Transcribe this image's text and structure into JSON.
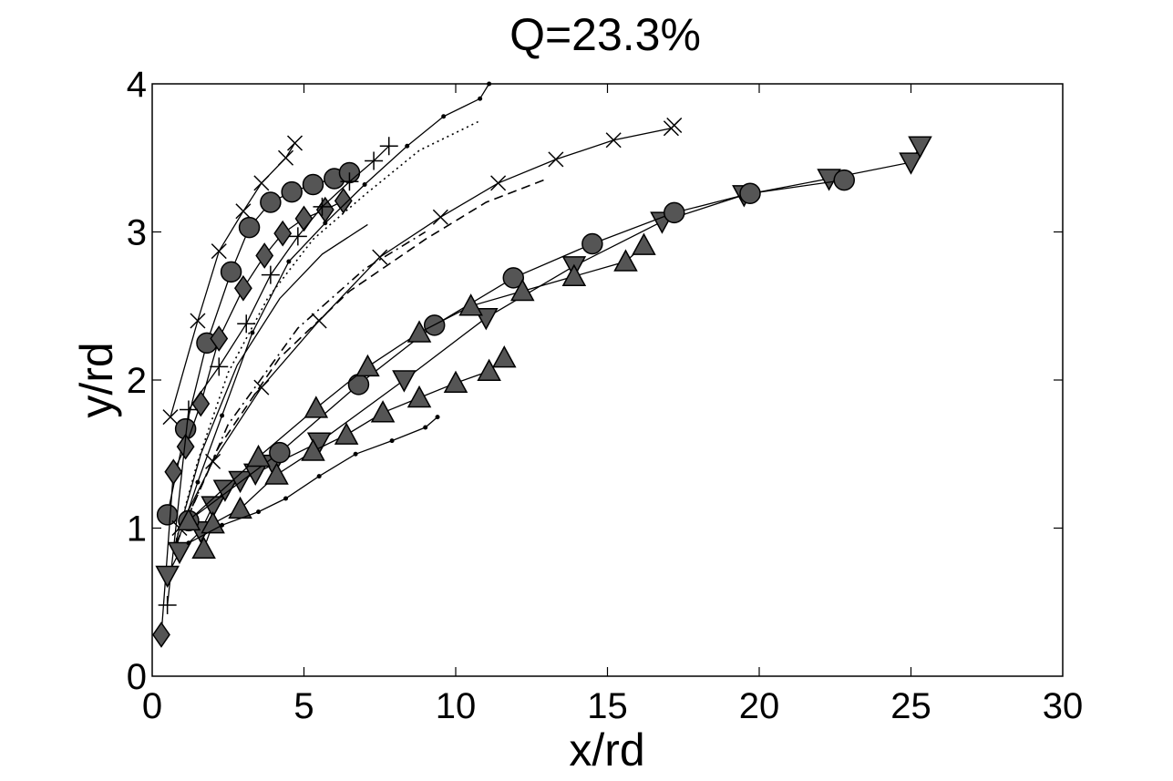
{
  "chart_data": {
    "type": "scatter",
    "title": "Q=23.3%",
    "xlabel": "x/rd",
    "ylabel": "y/rd",
    "xlim": [
      0,
      30
    ],
    "ylim": [
      0,
      4
    ],
    "xticks": [
      "0",
      "5",
      "10",
      "15",
      "20",
      "25",
      "30"
    ],
    "yticks": [
      "0",
      "1",
      "2",
      "3",
      "4"
    ],
    "grid": false,
    "legend": "none",
    "series": [
      {
        "marker": "x",
        "line": "solid",
        "x": [
          0.6,
          1.5,
          2.2,
          3.0,
          3.6,
          4.4,
          4.7
        ],
        "y": [
          1.75,
          2.4,
          2.87,
          3.14,
          3.33,
          3.5,
          3.6
        ]
      },
      {
        "marker": "circle",
        "line": "solid",
        "x": [
          0.5,
          1.1,
          1.8,
          2.6,
          3.2,
          3.9,
          4.6,
          5.3,
          6.0,
          6.5
        ],
        "y": [
          1.09,
          1.67,
          2.25,
          2.73,
          3.03,
          3.2,
          3.27,
          3.32,
          3.36,
          3.4
        ]
      },
      {
        "marker": "diamond",
        "line": "solid",
        "x": [
          0.3,
          0.7,
          1.1,
          1.6,
          2.2,
          3.0,
          3.7,
          4.3,
          5.0,
          5.7,
          6.3
        ],
        "y": [
          0.28,
          1.38,
          1.55,
          1.84,
          2.28,
          2.62,
          2.84,
          2.99,
          3.09,
          3.15,
          3.21
        ]
      },
      {
        "marker": "plus",
        "line": "solid",
        "x": [
          0.5,
          1.2,
          2.2,
          3.1,
          3.9,
          4.8,
          5.6,
          6.5,
          7.3,
          7.8
        ],
        "y": [
          0.48,
          1.8,
          2.09,
          2.38,
          2.71,
          2.97,
          3.17,
          3.34,
          3.48,
          3.58
        ]
      },
      {
        "marker": "dot",
        "line": "solid",
        "x": [
          0.8,
          1.5,
          2.3,
          3.3,
          4.5,
          5.7,
          7.0,
          8.4,
          9.6,
          10.8,
          11.1
        ],
        "y": [
          0.88,
          1.31,
          1.76,
          2.32,
          2.8,
          3.06,
          3.32,
          3.58,
          3.78,
          3.9,
          4.0
        ]
      },
      {
        "marker": "none",
        "line": "dotted",
        "x": [
          0.7,
          1.5,
          2.5,
          3.8,
          5.3,
          7.0,
          8.8,
          10.8
        ],
        "y": [
          0.85,
          1.45,
          2.05,
          2.55,
          2.95,
          3.25,
          3.55,
          3.75
        ]
      },
      {
        "marker": "none",
        "line": "solid",
        "x": [
          0.7,
          1.6,
          2.8,
          4.2,
          5.6,
          7.1
        ],
        "y": [
          0.85,
          1.5,
          2.1,
          2.55,
          2.85,
          3.05
        ]
      },
      {
        "marker": "x",
        "line": "solid",
        "x": [
          0.9,
          2.0,
          3.6,
          5.5,
          7.5,
          9.5,
          11.4,
          13.3,
          15.2,
          17.1,
          17.2
        ],
        "y": [
          1.0,
          1.45,
          1.95,
          2.4,
          2.83,
          3.1,
          3.33,
          3.49,
          3.62,
          3.7,
          3.72
        ]
      },
      {
        "marker": "none",
        "line": "dashed",
        "x": [
          0.8,
          2.2,
          4.2,
          6.5,
          9.0,
          11.0,
          12.9
        ],
        "y": [
          0.9,
          1.55,
          2.15,
          2.6,
          2.95,
          3.2,
          3.35
        ]
      },
      {
        "marker": "none",
        "line": "dashdot",
        "x": [
          0.8,
          2.5,
          4.8,
          7.0,
          9.0
        ],
        "y": [
          0.9,
          1.7,
          2.35,
          2.75,
          3.0
        ]
      },
      {
        "marker": "triangle-down",
        "line": "solid",
        "x": [
          0.5,
          0.9,
          1.6,
          2.0,
          2.4,
          2.9,
          3.4,
          4.0,
          5.5,
          8.3,
          11.0,
          13.9,
          16.8,
          19.5,
          22.3,
          25.0,
          25.3
        ],
        "y": [
          0.68,
          0.84,
          0.98,
          1.15,
          1.26,
          1.32,
          1.37,
          1.43,
          1.58,
          2.0,
          2.42,
          2.77,
          3.07,
          3.25,
          3.36,
          3.47,
          3.58
        ]
      },
      {
        "marker": "circle",
        "line": "solid",
        "x": [
          1.2,
          4.2,
          6.8,
          9.3,
          11.9,
          14.5,
          17.2,
          19.7,
          22.8
        ],
        "y": [
          1.05,
          1.51,
          1.97,
          2.37,
          2.69,
          2.92,
          3.13,
          3.26,
          3.35
        ]
      },
      {
        "marker": "triangle-up",
        "line": "solid",
        "x": [
          1.7,
          2.0,
          2.9,
          4.1,
          5.3,
          6.4,
          7.6,
          8.8,
          10.0,
          11.1,
          11.6
        ],
        "y": [
          0.86,
          1.03,
          1.13,
          1.36,
          1.52,
          1.63,
          1.78,
          1.88,
          1.98,
          2.06,
          2.15
        ]
      },
      {
        "marker": "triangle-up",
        "line": "solid",
        "x": [
          1.2,
          3.5,
          5.4,
          7.1,
          8.8,
          10.5,
          12.2,
          13.9,
          15.6,
          16.2
        ],
        "y": [
          1.05,
          1.48,
          1.81,
          2.09,
          2.32,
          2.5,
          2.6,
          2.7,
          2.8,
          2.91
        ]
      },
      {
        "marker": "dot",
        "line": "solid",
        "x": [
          1.2,
          2.3,
          3.5,
          4.4,
          5.5,
          6.7,
          7.9,
          9.0,
          9.4
        ],
        "y": [
          0.9,
          1.02,
          1.11,
          1.2,
          1.35,
          1.5,
          1.59,
          1.68,
          1.75
        ]
      }
    ]
  }
}
